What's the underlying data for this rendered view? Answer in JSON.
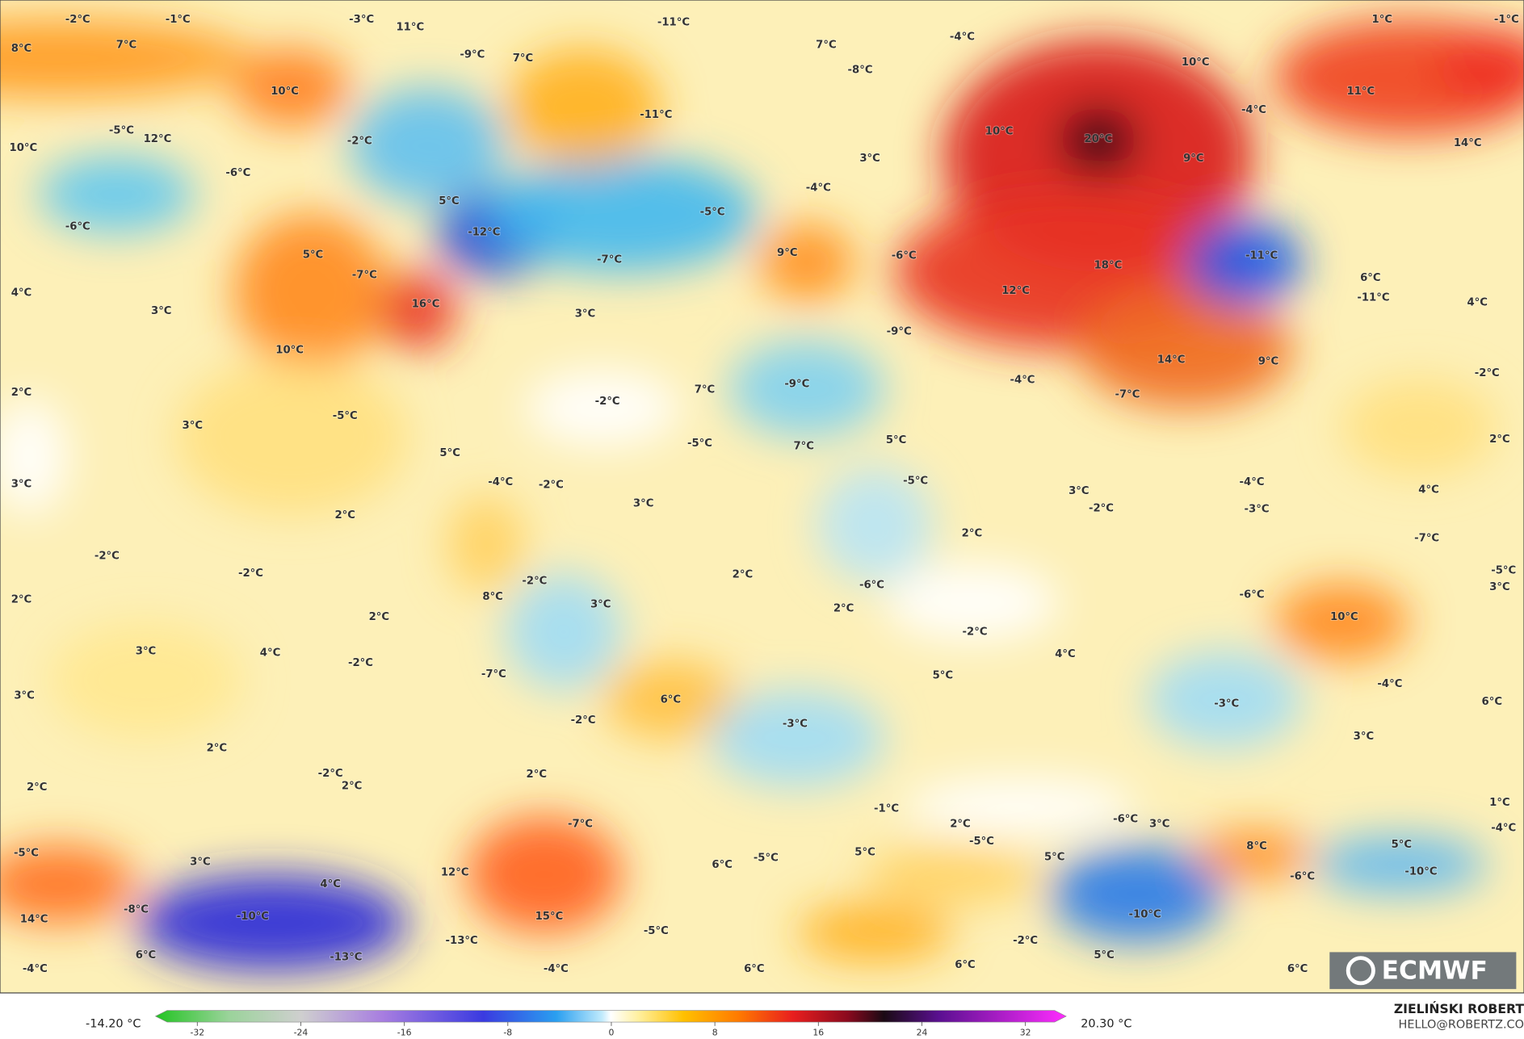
{
  "map": {
    "labels": [
      "-2°C",
      "-1°C",
      "-3°C",
      "11°C",
      "-11°C",
      "1°C",
      "-1°C",
      "8°C",
      "7°C",
      "7°C",
      "-9°C",
      "7°C",
      "-4°C",
      "-8°C",
      "10°C",
      "10°C",
      "11°C",
      "-11°C",
      "-4°C",
      "-5°C",
      "12°C",
      "-2°C",
      "10°C",
      "20°C",
      "14°C",
      "10°C",
      "-6°C",
      "3°C",
      "9°C",
      "-4°C",
      "5°C",
      "-5°C",
      "-6°C",
      "-12°C",
      "-7°C",
      "5°C",
      "-7°C",
      "9°C",
      "-6°C",
      "18°C",
      "-11°C",
      "6°C",
      "4°C",
      "12°C",
      "16°C",
      "-11°C",
      "4°C",
      "3°C",
      "3°C",
      "10°C",
      "-9°C",
      "14°C",
      "9°C",
      "-2°C",
      "-9°C",
      "-4°C",
      "7°C",
      "2°C",
      "-7°C",
      "-2°C",
      "3°C",
      "-5°C",
      "-5°C",
      "7°C",
      "5°C",
      "2°C",
      "5°C",
      "-4°C",
      "-2°C",
      "-5°C",
      "3°C",
      "3°C",
      "3°C",
      "-2°C",
      "4°C",
      "-4°C",
      "-3°C",
      "2°C",
      "2°C",
      "-7°C",
      "-2°C",
      "-2°C",
      "2°C",
      "-2°C",
      "-5°C",
      "3°C",
      "-6°C",
      "-6°C",
      "8°C",
      "2°C",
      "2°C",
      "3°C",
      "2°C",
      "10°C",
      "-2°C",
      "3°C",
      "4°C",
      "-2°C",
      "4°C",
      "-7°C",
      "5°C",
      "-4°C",
      "3°C",
      "6°C",
      "-3°C",
      "6°C",
      "-2°C",
      "-3°C",
      "3°C",
      "2°C",
      "-2°C",
      "2°C",
      "2°C",
      "2°C",
      "-1°C",
      "1°C",
      "-7°C",
      "2°C",
      "-6°C",
      "3°C",
      "-4°C",
      "-5°C",
      "-5°C",
      "8°C",
      "5°C",
      "5°C",
      "3°C",
      "6°C",
      "-5°C",
      "5°C",
      "12°C",
      "-10°C",
      "-6°C",
      "4°C",
      "-8°C",
      "-10°C",
      "15°C",
      "-10°C",
      "14°C",
      "-13°C",
      "-5°C",
      "-2°C",
      "6°C",
      "-13°C",
      "5°C",
      "-4°C",
      "-4°C",
      "6°C",
      "6°C",
      "6°C"
    ]
  },
  "colorbar": {
    "ticks": [
      -32,
      -24,
      -16,
      -8,
      0,
      8,
      16,
      24,
      32
    ],
    "min_label": "-14.20 °C",
    "max_label": "20.30 °C"
  },
  "logo": "ECMWF",
  "credit": {
    "name": "ZIELIŃSKI ROBERT",
    "email": "HELLO@ROBERTZ.CO"
  }
}
